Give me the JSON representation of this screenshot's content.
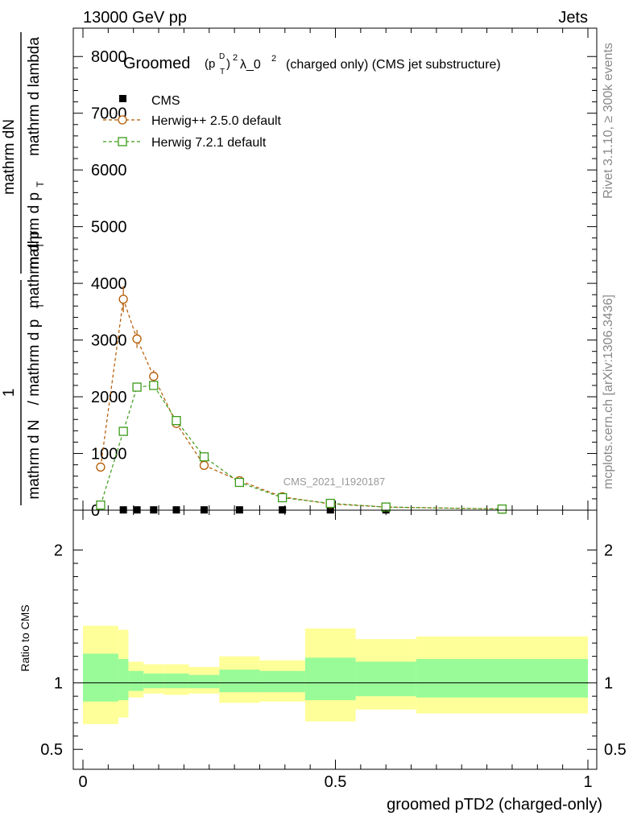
{
  "header": {
    "energy": "13000 GeV pp",
    "process": "Jets"
  },
  "side_labels": {
    "rivet": "Rivet 3.1.10, ≥ 300k events",
    "mcplots": "mcplots.cern.ch [arXiv:1306.3436]"
  },
  "watermark": "CMS_2021_I1920187",
  "chart_data": [
    {
      "type": "line",
      "panel": "main",
      "title": {
        "prefix": "Groomed",
        "sym_p": "(p",
        "sym_sup_D": "D",
        "sym_sub_T": "T",
        "sym_close": ")",
        "sym_sup_2": "2",
        "lambda": "λ_0",
        "lambda_sup": "2",
        "suffix": "(charged only) (CMS jet substructure)"
      },
      "ylabel": {
        "top_a": "mathrm dN",
        "top_b": "mathrm d p",
        "top_b_sub": "T",
        "top_b_tail": "mathrm d lambda",
        "one": "1",
        "bot_a": "mathrm d N",
        "bot_a_tail": "/ mathrm d p",
        "bot_a_sub": "T",
        "bot_b": "mathrm d p",
        "bot_b_sub": "T"
      },
      "xlim": [
        0,
        1
      ],
      "ylim": [
        0,
        8500
      ],
      "yticks": [
        0,
        1000,
        2000,
        3000,
        4000,
        5000,
        6000,
        7000,
        8000
      ],
      "ytick_labels": [
        "0",
        "1000",
        "2000",
        "3000",
        "4000",
        "5000",
        "6000",
        "7000",
        "8000"
      ],
      "series": [
        {
          "name": "CMS",
          "color": "#000000",
          "marker": "filled-square",
          "x": [
            0.08,
            0.107,
            0.14,
            0.185,
            0.24,
            0.31,
            0.395,
            0.49,
            0.6,
            0.83
          ],
          "y": [
            5,
            5,
            5,
            5,
            5,
            5,
            5,
            5,
            5,
            5
          ]
        },
        {
          "name": "Herwig++ 2.5.0 default",
          "color": "#b35900",
          "marker": "open-circle",
          "x": [
            0.035,
            0.08,
            0.107,
            0.14,
            0.185,
            0.24,
            0.31,
            0.395,
            0.49,
            0.6,
            0.83
          ],
          "y": [
            760,
            3720,
            3020,
            2360,
            1530,
            790,
            520,
            235,
            110,
            55,
            20
          ],
          "yerr": [
            30,
            230,
            160,
            110,
            80,
            40,
            30,
            15,
            10,
            5,
            3
          ]
        },
        {
          "name": "Herwig 7.2.1 default",
          "color": "#3c9a18",
          "marker": "open-square",
          "x": [
            0.035,
            0.08,
            0.107,
            0.14,
            0.185,
            0.24,
            0.31,
            0.395,
            0.49,
            0.6,
            0.83
          ],
          "y": [
            90,
            1390,
            2170,
            2200,
            1580,
            940,
            490,
            220,
            120,
            55,
            20
          ],
          "yerr": [
            10,
            60,
            70,
            70,
            60,
            40,
            25,
            15,
            10,
            5,
            3
          ]
        }
      ]
    },
    {
      "type": "area",
      "panel": "ratio",
      "ylabel": "Ratio to CMS",
      "xlabel": "groomed pTD2 (charged-only)",
      "xlim": [
        0,
        1
      ],
      "ylim": [
        0.35,
        2.3
      ],
      "yticks": [
        0.5,
        1,
        2
      ],
      "ytick_labels": [
        "0.5",
        "1",
        "2"
      ],
      "xticks": [
        0,
        0.5,
        1
      ],
      "xtick_labels": [
        "0",
        "0.5",
        "1"
      ],
      "band_colors": {
        "inner": "#98fb98",
        "outer": "#ffff99",
        "line": "#000000"
      },
      "bins": [
        {
          "lo": 0.0,
          "hi": 0.07,
          "outer_lo": 0.69,
          "outer_hi": 1.43,
          "inner_lo": 0.86,
          "inner_hi": 1.22
        },
        {
          "lo": 0.07,
          "hi": 0.09,
          "outer_lo": 0.74,
          "outer_hi": 1.4,
          "inner_lo": 0.87,
          "inner_hi": 1.18
        },
        {
          "lo": 0.09,
          "hi": 0.12,
          "outer_lo": 0.89,
          "outer_hi": 1.16,
          "inner_lo": 0.94,
          "inner_hi": 1.09
        },
        {
          "lo": 0.12,
          "hi": 0.16,
          "outer_lo": 0.92,
          "outer_hi": 1.14,
          "inner_lo": 0.96,
          "inner_hi": 1.07
        },
        {
          "lo": 0.16,
          "hi": 0.21,
          "outer_lo": 0.91,
          "outer_hi": 1.14,
          "inner_lo": 0.96,
          "inner_hi": 1.07
        },
        {
          "lo": 0.21,
          "hi": 0.27,
          "outer_lo": 0.92,
          "outer_hi": 1.12,
          "inner_lo": 0.96,
          "inner_hi": 1.06
        },
        {
          "lo": 0.27,
          "hi": 0.35,
          "outer_lo": 0.85,
          "outer_hi": 1.2,
          "inner_lo": 0.93,
          "inner_hi": 1.1
        },
        {
          "lo": 0.35,
          "hi": 0.44,
          "outer_lo": 0.86,
          "outer_hi": 1.17,
          "inner_lo": 0.93,
          "inner_hi": 1.09
        },
        {
          "lo": 0.44,
          "hi": 0.54,
          "outer_lo": 0.71,
          "outer_hi": 1.41,
          "inner_lo": 0.87,
          "inner_hi": 1.19
        },
        {
          "lo": 0.54,
          "hi": 0.66,
          "outer_lo": 0.8,
          "outer_hi": 1.33,
          "inner_lo": 0.9,
          "inner_hi": 1.16
        },
        {
          "lo": 0.66,
          "hi": 1.0,
          "outer_lo": 0.77,
          "outer_hi": 1.35,
          "inner_lo": 0.89,
          "inner_hi": 1.18
        }
      ]
    }
  ]
}
